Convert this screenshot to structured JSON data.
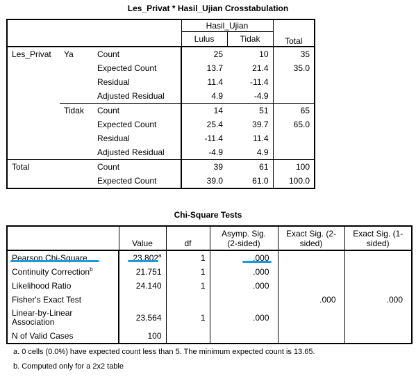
{
  "crosstab": {
    "title": "Les_Privat * Hasil_Ujian Crosstabulation",
    "group_header": "Hasil_Ujian",
    "col_lulus": "Lulus",
    "col_tidak": "Tidak",
    "col_total": "Total",
    "row_var": "Les_Privat",
    "total_label": "Total",
    "rows": [
      {
        "g1": "Les_Privat",
        "g2": "Ya",
        "stat": "Count",
        "lulus": "25",
        "tidak": "10",
        "total": "35"
      },
      {
        "g1": "",
        "g2": "",
        "stat": "Expected Count",
        "lulus": "13.7",
        "tidak": "21.4",
        "total": "35.0"
      },
      {
        "g1": "",
        "g2": "",
        "stat": "Residual",
        "lulus": "11.4",
        "tidak": "-11.4",
        "total": ""
      },
      {
        "g1": "",
        "g2": "",
        "stat": "Adjusted Residual",
        "lulus": "4.9",
        "tidak": "-4.9",
        "total": ""
      },
      {
        "g1": "",
        "g2": "Tidak",
        "stat": "Count",
        "lulus": "14",
        "tidak": "51",
        "total": "65"
      },
      {
        "g1": "",
        "g2": "",
        "stat": "Expected Count",
        "lulus": "25.4",
        "tidak": "39.7",
        "total": "65.0"
      },
      {
        "g1": "",
        "g2": "",
        "stat": "Residual",
        "lulus": "-11.4",
        "tidak": "11.4",
        "total": ""
      },
      {
        "g1": "",
        "g2": "",
        "stat": "Adjusted Residual",
        "lulus": "-4.9",
        "tidak": "4.9",
        "total": ""
      },
      {
        "g1": "Total",
        "g2": "",
        "stat": "Count",
        "lulus": "39",
        "tidak": "61",
        "total": "100"
      },
      {
        "g1": "",
        "g2": "",
        "stat": "Expected Count",
        "lulus": "39.0",
        "tidak": "61.0",
        "total": "100.0"
      }
    ]
  },
  "chisq": {
    "title": "Chi-Square Tests",
    "headers": {
      "value": "Value",
      "df": "df",
      "asymp": "Asymp. Sig. (2-sided)",
      "exact2": "Exact Sig. (2-sided)",
      "exact1": "Exact Sig. (1-sided)"
    },
    "rows": [
      {
        "label": "Pearson Chi-Square",
        "sup_label": "",
        "value": "23.802",
        "sup_value": "a",
        "df": "1",
        "asymp": ".000",
        "exact2": "",
        "exact1": ""
      },
      {
        "label": "Continuity Correction",
        "sup_label": "b",
        "value": "21.751",
        "sup_value": "",
        "df": "1",
        "asymp": ".000",
        "exact2": "",
        "exact1": ""
      },
      {
        "label": "Likelihood Ratio",
        "sup_label": "",
        "value": "24.140",
        "sup_value": "",
        "df": "1",
        "asymp": ".000",
        "exact2": "",
        "exact1": ""
      },
      {
        "label": "Fisher's Exact Test",
        "sup_label": "",
        "value": "",
        "sup_value": "",
        "df": "",
        "asymp": "",
        "exact2": ".000",
        "exact1": ".000"
      },
      {
        "label": "Linear-by-Linear Association",
        "sup_label": "",
        "value": "23.564",
        "sup_value": "",
        "df": "1",
        "asymp": ".000",
        "exact2": "",
        "exact1": ""
      },
      {
        "label": "N of Valid Cases",
        "sup_label": "",
        "value": "100",
        "sup_value": "",
        "df": "",
        "asymp": "",
        "exact2": "",
        "exact1": ""
      }
    ],
    "footnote_a": "a. 0 cells (0.0%) have expected count less than 5. The minimum expected count is 13.65.",
    "footnote_b": "b. Computed only for a 2x2 table"
  },
  "highlight_color": "#1a9ad6"
}
